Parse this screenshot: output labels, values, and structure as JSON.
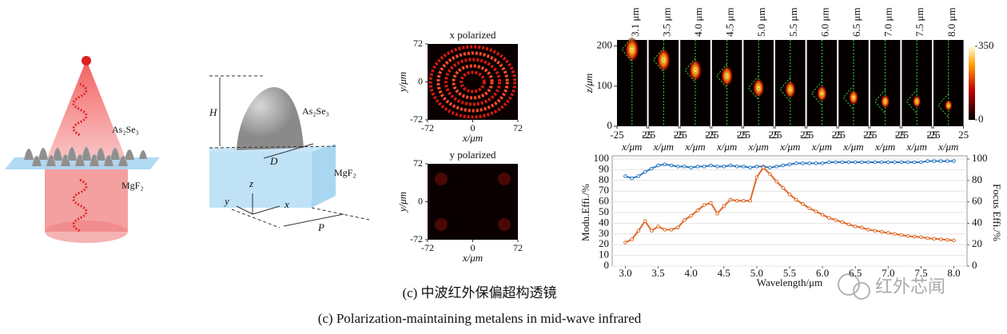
{
  "illustration": {
    "material_top": "As₂Se₃",
    "material_bottom": "MgF₂"
  },
  "unit_cell": {
    "height": "H",
    "diameter": "D",
    "period": "P",
    "axis_x": "x",
    "axis_y": "y",
    "axis_z": "z",
    "material_top": "As₂Se₃",
    "material_bottom": "MgF₂"
  },
  "field_maps": [
    {
      "title": "x polarized",
      "ylabel": "y/μm",
      "xlabel": "x/μm",
      "xlim": [
        -72,
        72
      ],
      "ylim": [
        -72,
        72
      ],
      "xticks": [
        -72,
        0,
        72
      ],
      "yticks": [
        -72,
        0,
        72
      ]
    },
    {
      "title": "y polarized",
      "ylabel": "y/μm",
      "xlabel": "x/μm",
      "xlim": [
        -72,
        72
      ],
      "ylim": [
        -72,
        72
      ],
      "xticks": [
        -72,
        0,
        72
      ],
      "yticks": [
        -72,
        0,
        72
      ]
    }
  ],
  "focal_panels": {
    "wavelengths": [
      "3.1 μm",
      "3.5 μm",
      "4.0 μm",
      "4.5 μm",
      "5.0 μm",
      "5.5 μm",
      "6.0 μm",
      "6.5 μm",
      "7.0 μm",
      "7.5 μm",
      "8.0 μm"
    ],
    "ylabel": "z/μm",
    "ylim": [
      0,
      215
    ],
    "yticks": [
      0,
      100,
      200
    ],
    "xlabel": "x/μm",
    "xlim": [
      -25,
      25
    ],
    "xticks": [
      -25,
      25
    ],
    "colorbar_lim": [
      0,
      350
    ],
    "colorbar_ticks": [
      0,
      350
    ]
  },
  "chart_data": {
    "type": "line",
    "xlabel": "Wavelength/μm",
    "ylabel": "Modu.Effi./%",
    "y2label": "Focus Effi./%",
    "x": [
      3.0,
      3.1,
      3.2,
      3.3,
      3.4,
      3.5,
      3.6,
      3.7,
      3.8,
      3.9,
      4.0,
      4.1,
      4.2,
      4.3,
      4.4,
      4.5,
      4.6,
      4.7,
      4.8,
      4.9,
      5.0,
      5.1,
      5.2,
      5.3,
      5.4,
      5.5,
      5.6,
      5.7,
      5.8,
      5.9,
      6.0,
      6.1,
      6.2,
      6.3,
      6.4,
      6.5,
      6.6,
      6.7,
      6.8,
      6.9,
      7.0,
      7.1,
      7.2,
      7.3,
      7.4,
      7.5,
      7.6,
      7.7,
      7.8,
      7.9,
      8.0
    ],
    "series": [
      {
        "color": "#2e7bc0",
        "axis": "y",
        "values": [
          84,
          82,
          84,
          88,
          91,
          94,
          95,
          94,
          93,
          93,
          92,
          93,
          93,
          94,
          93,
          93,
          94,
          93,
          93,
          92,
          93,
          93,
          92,
          93,
          94,
          95,
          96,
          96,
          96,
          96,
          96,
          97,
          97,
          97,
          97,
          97,
          97,
          97,
          97,
          97,
          97,
          97,
          97,
          97,
          97,
          97,
          98,
          98,
          98,
          98,
          98
        ]
      },
      {
        "color": "#e0692a",
        "axis": "y2",
        "values": [
          22,
          25,
          33,
          42,
          33,
          37,
          34,
          34,
          36,
          43,
          47,
          52,
          57,
          59,
          49,
          56,
          62,
          61,
          61,
          61,
          83,
          92,
          86,
          79,
          73,
          67,
          62,
          58,
          54,
          51,
          48,
          45,
          43,
          41,
          39,
          37,
          36,
          34,
          33,
          32,
          31,
          30,
          29,
          28,
          27.5,
          27,
          26,
          25.5,
          25,
          24.5,
          24
        ]
      }
    ],
    "xlim": [
      2.8,
      8.2
    ],
    "xticks": [
      {
        "value": 3,
        "label": "3.0"
      },
      3.5,
      {
        "value": 4,
        "label": "4.0"
      },
      4.5,
      {
        "value": 5,
        "label": "5.0"
      },
      5.5,
      {
        "value": 6,
        "label": "6.0"
      },
      6.5,
      {
        "value": 7,
        "label": "7.0"
      },
      7.5,
      {
        "value": 8,
        "label": "8.0"
      }
    ],
    "ylim": [
      0,
      100
    ],
    "yticks": [
      0,
      10,
      20,
      30,
      40,
      50,
      60,
      70,
      80,
      90,
      100
    ],
    "y2lim": [
      0,
      100
    ],
    "y2ticks": [
      0,
      20,
      40,
      60,
      80,
      100
    ],
    "grid": true
  },
  "caption": {
    "zh": "(c) 中波红外保偏超构透镜",
    "en": "(c) Polarization-maintaining metalens in mid-wave infrared"
  },
  "watermark": "红外芯闻"
}
